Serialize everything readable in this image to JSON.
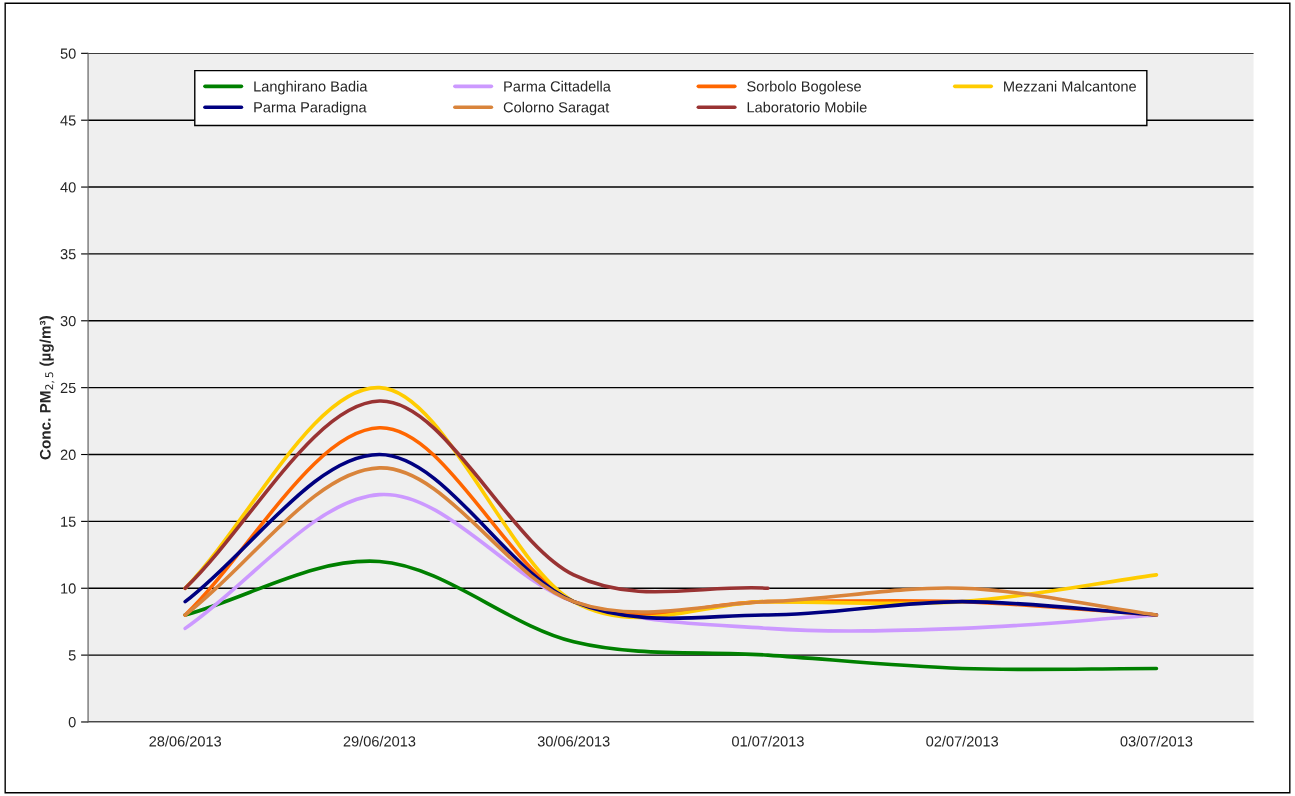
{
  "chart_data": {
    "type": "line",
    "ylabel": "Conc. PM$_{2,5}$ (µg/m³)",
    "categories": [
      "28/06/2013",
      "29/06/2013",
      "30/06/2013",
      "01/07/2013",
      "02/07/2013",
      "03/07/2013"
    ],
    "series": [
      {
        "name": "Langhirano Badia",
        "color": "#008000",
        "values": [
          8,
          12,
          6,
          5,
          4,
          4
        ]
      },
      {
        "name": "Parma Cittadella",
        "color": "#cc99ff",
        "values": [
          7,
          17,
          9,
          7,
          7,
          8
        ]
      },
      {
        "name": "Sorbolo Bogolese",
        "color": "#ff6600",
        "values": [
          8,
          22,
          9,
          9,
          9,
          8
        ]
      },
      {
        "name": "Mezzani Malcantone",
        "color": "#ffcc00",
        "values": [
          10,
          25,
          9,
          9,
          9,
          11
        ]
      },
      {
        "name": "Parma Paradigna",
        "color": "#000080",
        "values": [
          9,
          20,
          9,
          8,
          9,
          8
        ]
      },
      {
        "name": "Colorno Saragat",
        "color": "#d9843b",
        "values": [
          8,
          19,
          9,
          9,
          10,
          8
        ]
      },
      {
        "name": "Laboratorio Mobile",
        "color": "#993333",
        "values": [
          10,
          24,
          11,
          10,
          null,
          null
        ]
      }
    ],
    "ylim": [
      0,
      50
    ],
    "yticks": [
      0,
      5,
      10,
      15,
      20,
      25,
      30,
      35,
      40,
      45,
      50
    ],
    "grid": "y",
    "legend": "top",
    "marker": "none",
    "line_style": "solid"
  }
}
